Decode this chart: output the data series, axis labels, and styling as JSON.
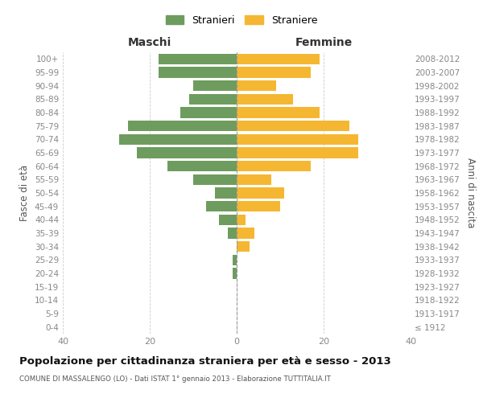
{
  "age_groups": [
    "0-4",
    "5-9",
    "10-14",
    "15-19",
    "20-24",
    "25-29",
    "30-34",
    "35-39",
    "40-44",
    "45-49",
    "50-54",
    "55-59",
    "60-64",
    "65-69",
    "70-74",
    "75-79",
    "80-84",
    "85-89",
    "90-94",
    "95-99",
    "100+"
  ],
  "birth_years": [
    "2008-2012",
    "2003-2007",
    "1998-2002",
    "1993-1997",
    "1988-1992",
    "1983-1987",
    "1978-1982",
    "1973-1977",
    "1968-1972",
    "1963-1967",
    "1958-1962",
    "1953-1957",
    "1948-1952",
    "1943-1947",
    "1938-1942",
    "1933-1937",
    "1928-1932",
    "1923-1927",
    "1918-1922",
    "1913-1917",
    "≤ 1912"
  ],
  "maschi": [
    18,
    18,
    10,
    11,
    13,
    25,
    27,
    23,
    16,
    10,
    5,
    7,
    4,
    2,
    0,
    1,
    1,
    0,
    0,
    0,
    0
  ],
  "femmine": [
    19,
    17,
    9,
    13,
    19,
    26,
    28,
    28,
    17,
    8,
    11,
    10,
    2,
    4,
    3,
    0,
    0,
    0,
    0,
    0,
    0
  ],
  "color_maschi": "#6e9c5e",
  "color_femmine": "#f5b731",
  "title": "Popolazione per cittadinanza straniera per età e sesso - 2013",
  "subtitle": "COMUNE DI MASSALENGO (LO) - Dati ISTAT 1° gennaio 2013 - Elaborazione TUTTITALIA.IT",
  "ylabel_left": "Fasce di età",
  "ylabel_right": "Anni di nascita",
  "xlabel_left": "Maschi",
  "xlabel_right": "Femmine",
  "xlim": 40,
  "legend_stranieri": "Stranieri",
  "legend_straniere": "Straniere",
  "background_color": "#ffffff",
  "grid_color": "#cccccc",
  "axis_label_color": "#555555",
  "tick_color": "#888888"
}
